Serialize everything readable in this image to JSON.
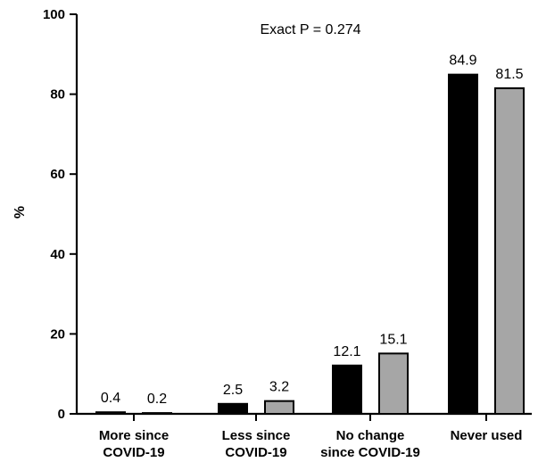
{
  "chart_data": {
    "type": "bar",
    "title": "",
    "annotation": "Exact P = 0.274",
    "xlabel": "",
    "ylabel": "%",
    "ylim": [
      0,
      100
    ],
    "yticks": [
      0,
      20,
      40,
      60,
      80,
      100
    ],
    "grid": false,
    "categories": [
      [
        "More since",
        "COVID-19"
      ],
      [
        "Less since",
        "COVID-19"
      ],
      [
        "No change",
        "since COVID-19"
      ],
      [
        "Never used"
      ]
    ],
    "series": [
      {
        "color": "#000000",
        "values": [
          0.4,
          2.5,
          12.1,
          84.9
        ],
        "labels": [
          "0.4",
          "2.5",
          "12.1",
          "84.9"
        ]
      },
      {
        "color": "#a6a6a6",
        "values": [
          0.2,
          3.2,
          15.1,
          81.5
        ],
        "labels": [
          "0.2",
          "3.2",
          "15.1",
          "81.5"
        ]
      }
    ]
  }
}
